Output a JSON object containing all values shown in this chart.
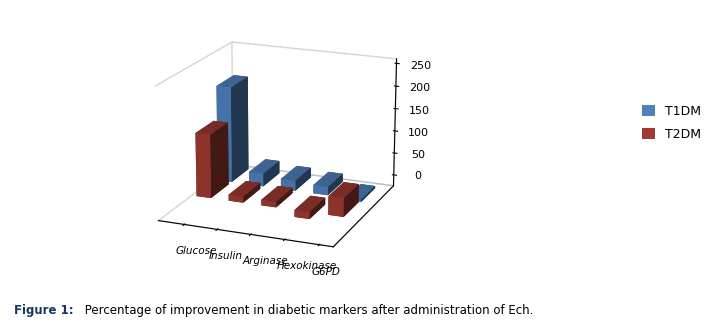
{
  "categories": [
    "Glucose",
    "Insulin",
    "Arginase",
    "Hexokinase",
    "G6PD"
  ],
  "t1dm": [
    210,
    28,
    22,
    18,
    -5
  ],
  "t2dm": [
    138,
    13,
    12,
    -15,
    40
  ],
  "t1dm_color": "#4F81BD",
  "t2dm_color": "#9E3B32",
  "ylim": [
    -25,
    260
  ],
  "yticks": [
    0,
    50,
    100,
    150,
    200,
    250
  ],
  "legend_t1dm": "T1DM",
  "legend_t2dm": "T2DM",
  "caption_bold": "Figure 1:",
  "caption_normal": " Percentage of improvement in diabetic markers after administration of Ech.",
  "caption_color": "#17375E",
  "elev": 18,
  "azim": -68
}
